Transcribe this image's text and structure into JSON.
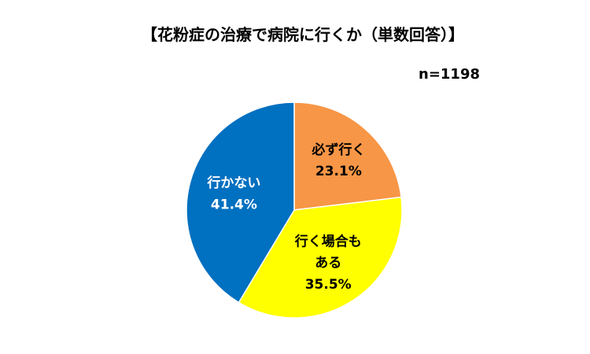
{
  "chart_data": {
    "type": "pie",
    "title": "【花粉症の治療で病院に行くか（単数回答）】",
    "subtitle": "n=1198",
    "slices": [
      {
        "label": "必ず行く",
        "label_lines": [
          "必ず行く"
        ],
        "value": 23.1,
        "value_text": "23.1%",
        "color": "#F79646",
        "text_color": "#000000"
      },
      {
        "label": "行く場合もある",
        "label_lines": [
          "行く場合も",
          "ある"
        ],
        "value": 35.5,
        "value_text": "35.5%",
        "color": "#FFFF00",
        "text_color": "#000000"
      },
      {
        "label": "行かない",
        "label_lines": [
          "行かない"
        ],
        "value": 41.4,
        "value_text": "41.4%",
        "color": "#0070C0",
        "text_color": "#ffffff"
      }
    ],
    "start": "12 o'clock",
    "direction": "clockwise",
    "legend": "none"
  }
}
